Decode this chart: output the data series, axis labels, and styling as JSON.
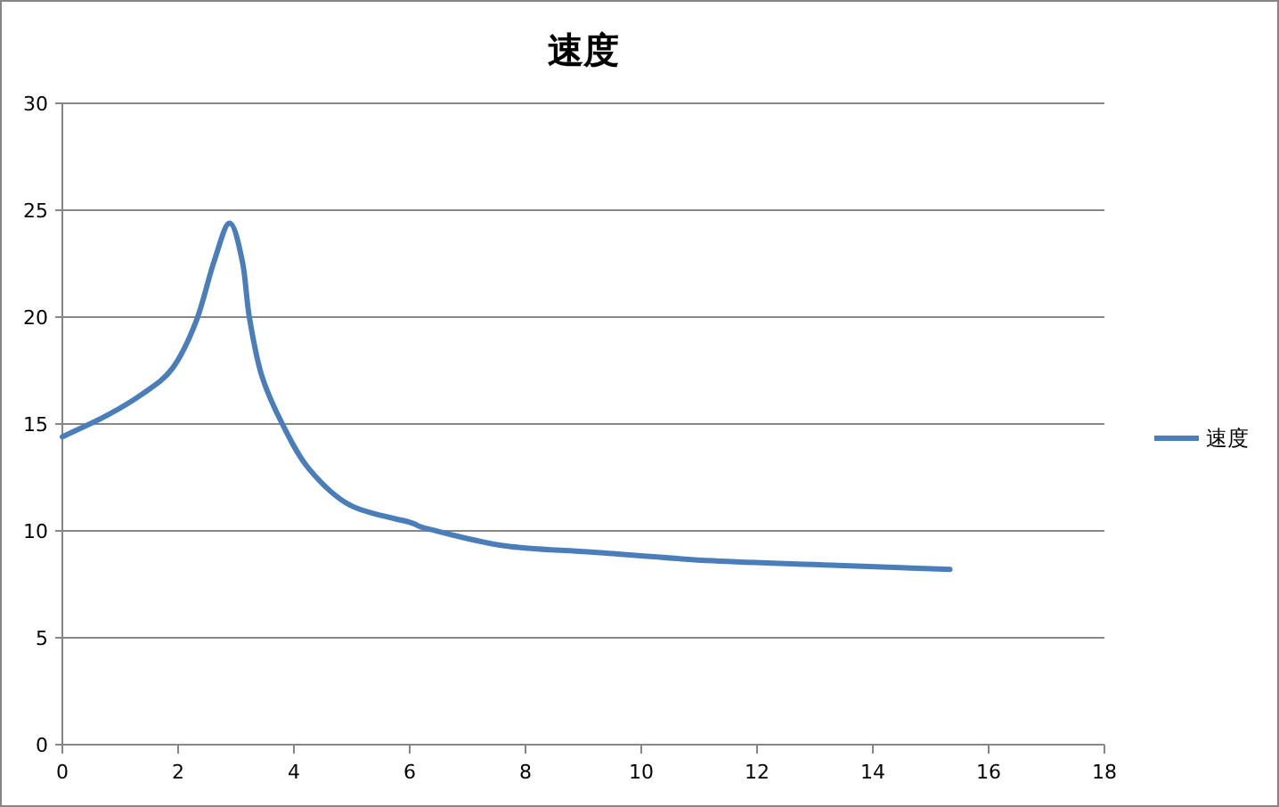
{
  "chart_data": {
    "type": "line",
    "title": "速度",
    "x": [
      0,
      0.77,
      1.38,
      1.9,
      2.31,
      2.62,
      2.89,
      3.11,
      3.23,
      3.44,
      3.8,
      4.26,
      4.97,
      6.0,
      6.31,
      7.64,
      9.18,
      11.23,
      13.28,
      15.33
    ],
    "series": [
      {
        "name": "速度",
        "color": "#4a7ebb",
        "values": [
          14.4,
          15.4,
          16.4,
          17.6,
          19.8,
          22.6,
          24.4,
          22.6,
          20.0,
          17.3,
          15.0,
          12.9,
          11.2,
          10.4,
          10.1,
          9.3,
          9.0,
          8.6,
          8.4,
          8.2
        ]
      }
    ],
    "xlim": [
      0,
      18
    ],
    "ylim": [
      0,
      30
    ],
    "xticks": [
      0,
      2,
      4,
      6,
      8,
      10,
      12,
      14,
      16,
      18
    ],
    "yticks": [
      0,
      5,
      10,
      15,
      20,
      25,
      30
    ],
    "grid": "y",
    "legend": "right",
    "marker": "none",
    "line_style": "solid"
  }
}
